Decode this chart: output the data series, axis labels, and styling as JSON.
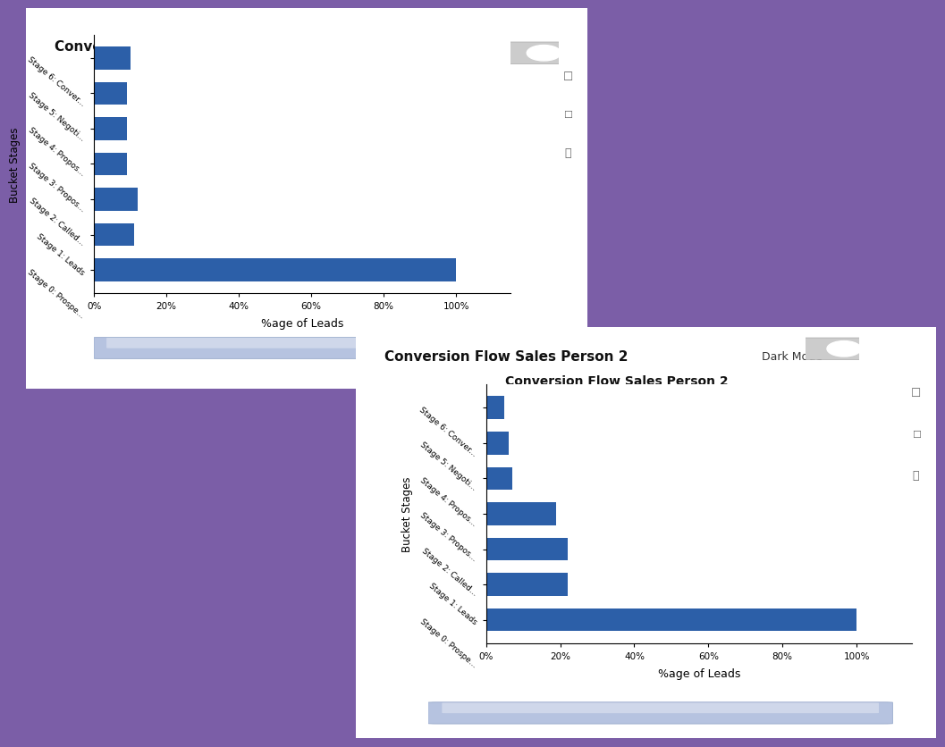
{
  "chart1": {
    "title": "Conversion Flow Sales Person 1",
    "chart_title": "",
    "stages": [
      "Stage 0: Prospe...",
      "Stage 1: Leads",
      "Stage 2: Called...",
      "Stage 3: Propos...",
      "Stage 4: Propos...",
      "Stage 5: Negoti...",
      "Stage 6: Conver..."
    ],
    "values": [
      100,
      11,
      12,
      9,
      9,
      9,
      10
    ],
    "bar_color": "#2c5fa8",
    "xlabel": "%age of Leads",
    "ylabel": "Bucket Stages",
    "xticks": [
      0,
      20,
      40,
      60,
      80,
      100
    ],
    "xtick_labels": [
      "0%",
      "20%",
      "40%",
      "60%",
      "80%",
      "100%"
    ]
  },
  "chart2": {
    "title": "Conversion Flow Sales Person 2",
    "chart_title": "Conversion Flow Sales Person 2",
    "stages": [
      "Stage 0: Prospe...",
      "Stage 1: Leads",
      "Stage 2: Called...",
      "Stage 3: Propos...",
      "Stage 4: Propos...",
      "Stage 5: Negoti...",
      "Stage 6: Conver..."
    ],
    "values": [
      100,
      22,
      22,
      19,
      7,
      6,
      5
    ],
    "bar_color": "#2c5fa8",
    "xlabel": "%age of Leads",
    "ylabel": "Bucket Stages",
    "xticks": [
      0,
      20,
      40,
      60,
      80,
      100
    ],
    "xtick_labels": [
      "0%",
      "20%",
      "40%",
      "60%",
      "80%",
      "100%"
    ]
  },
  "bg_color": "#f0f0f8",
  "card_color": "#ffffff",
  "outer_bg": "#7b5ea7"
}
